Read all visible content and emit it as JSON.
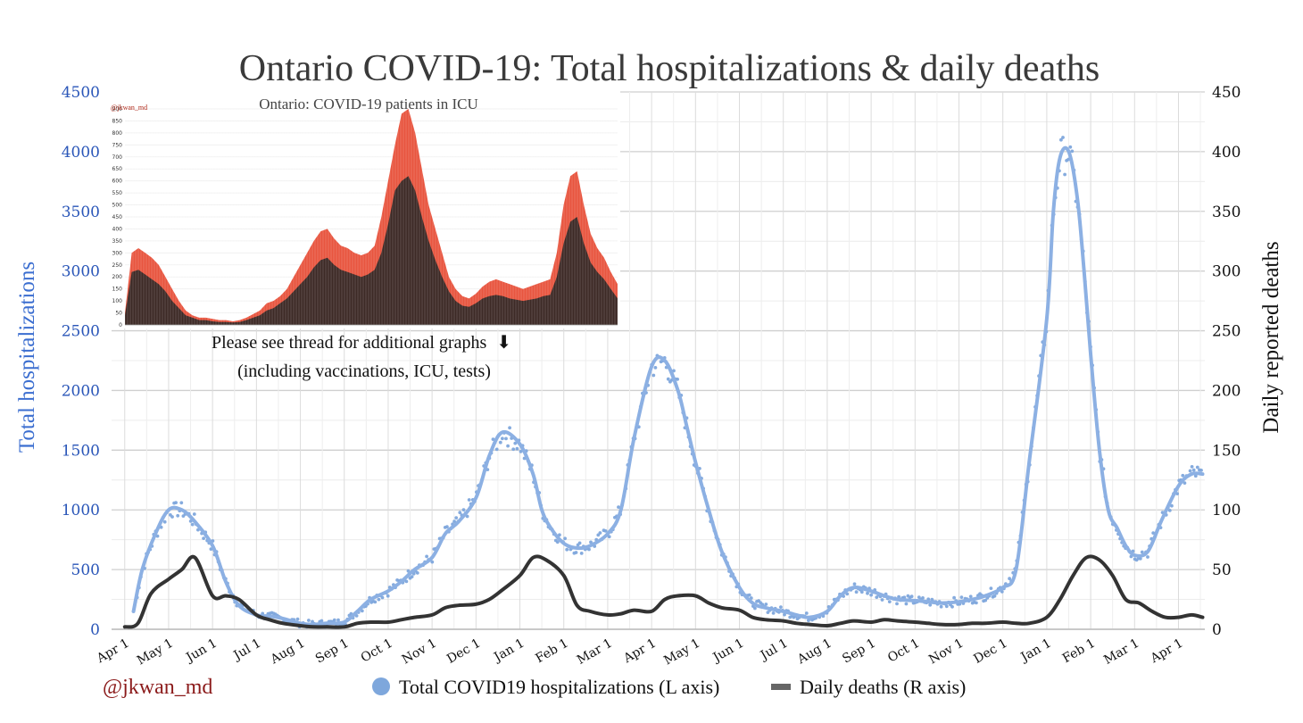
{
  "chart_data": {
    "type": "line",
    "title": "Ontario COVID-19: Total hospitalizations & daily deaths",
    "ylabel_left": "Total hospitalizations",
    "ylabel_right": "Daily reported deaths",
    "ylim_left": [
      0,
      4500
    ],
    "ylim_right": [
      0,
      450
    ],
    "yticks_left": [
      "0",
      "500",
      "1000",
      "1500",
      "2000",
      "2500",
      "3000",
      "3500",
      "4000",
      "4500"
    ],
    "yticks_right": [
      "0",
      "50",
      "100",
      "150",
      "200",
      "250",
      "300",
      "350",
      "400",
      "450"
    ],
    "x_tick_labels": [
      "Apr 1",
      "May 1",
      "Jun 1",
      "Jul 1",
      "Aug 1",
      "Sep 1",
      "Oct 1",
      "Nov 1",
      "Dec 1",
      "Jan 1",
      "Feb 1",
      "Mar 1",
      "Apr 1",
      "May 1",
      "Jun 1",
      "Jul 1",
      "Aug 1",
      "Sep 1",
      "Oct 1",
      "Nov 1",
      "Dec 1",
      "Jan 1",
      "Feb 1",
      "Mar 1",
      "Apr 1"
    ],
    "x_unit": "months since Apr 1 (first year)",
    "xlim": [
      -0.3,
      24.6
    ],
    "grid": true,
    "series": [
      {
        "name": "Total COVID19 hospitalizations (L axis)",
        "axis": "left",
        "color": "#8cb0e3",
        "style": "line with scattered daily points",
        "x": [
          0.2,
          0.4,
          0.7,
          1.0,
          1.3,
          1.6,
          2.0,
          2.3,
          2.6,
          3.0,
          3.3,
          3.6,
          4.0,
          4.3,
          4.6,
          5.0,
          5.3,
          5.6,
          6.0,
          6.3,
          6.6,
          7.0,
          7.3,
          7.6,
          8.0,
          8.3,
          8.6,
          9.0,
          9.3,
          9.5,
          9.7,
          10.0,
          10.3,
          10.6,
          11.0,
          11.3,
          11.6,
          12.0,
          12.3,
          12.6,
          12.8,
          13.0,
          13.3,
          13.6,
          14.0,
          14.3,
          14.6,
          15.0,
          15.3,
          15.6,
          16.0,
          16.3,
          16.6,
          17.0,
          17.3,
          17.6,
          18.0,
          18.3,
          18.6,
          19.0,
          19.3,
          19.6,
          20.0,
          20.3,
          20.6,
          21.0,
          21.15,
          21.3,
          21.5,
          21.7,
          21.85,
          22.0,
          22.2,
          22.4,
          22.6,
          22.8,
          23.0,
          23.3,
          23.6,
          24.0,
          24.3,
          24.55
        ],
        "values": [
          150,
          500,
          800,
          1000,
          1000,
          900,
          700,
          400,
          200,
          120,
          110,
          90,
          50,
          40,
          50,
          60,
          150,
          250,
          320,
          400,
          500,
          600,
          800,
          900,
          1100,
          1450,
          1650,
          1550,
          1300,
          1000,
          850,
          720,
          680,
          700,
          800,
          1000,
          1600,
          2200,
          2250,
          2000,
          1700,
          1400,
          1000,
          650,
          350,
          220,
          180,
          150,
          120,
          100,
          150,
          280,
          350,
          320,
          280,
          250,
          240,
          230,
          220,
          230,
          250,
          280,
          350,
          500,
          1400,
          2600,
          3500,
          3950,
          4000,
          3600,
          3000,
          2300,
          1500,
          1000,
          850,
          700,
          620,
          650,
          900,
          1200,
          1300,
          1300
        ]
      },
      {
        "name": "Daily deaths (R axis)",
        "axis": "right",
        "color": "#333333",
        "style": "thick line",
        "x": [
          0.0,
          0.3,
          0.6,
          1.0,
          1.3,
          1.6,
          2.0,
          2.3,
          2.6,
          3.0,
          3.3,
          3.6,
          4.0,
          4.3,
          4.6,
          5.0,
          5.3,
          5.6,
          6.0,
          6.3,
          6.6,
          7.0,
          7.3,
          7.6,
          8.0,
          8.3,
          8.6,
          9.0,
          9.3,
          9.6,
          10.0,
          10.3,
          10.6,
          11.0,
          11.3,
          11.6,
          12.0,
          12.3,
          12.6,
          13.0,
          13.3,
          13.6,
          14.0,
          14.3,
          14.6,
          15.0,
          15.3,
          15.6,
          16.0,
          16.3,
          16.6,
          17.0,
          17.3,
          17.6,
          18.0,
          18.3,
          18.6,
          19.0,
          19.3,
          19.6,
          20.0,
          20.3,
          20.6,
          21.0,
          21.3,
          21.6,
          21.9,
          22.2,
          22.5,
          22.8,
          23.1,
          23.4,
          23.7,
          24.0,
          24.3,
          24.55
        ],
        "values": [
          2,
          5,
          30,
          42,
          50,
          60,
          28,
          28,
          25,
          12,
          8,
          5,
          3,
          2,
          2,
          2,
          5,
          6,
          6,
          8,
          10,
          12,
          18,
          20,
          21,
          25,
          33,
          45,
          60,
          58,
          45,
          20,
          15,
          12,
          13,
          16,
          15,
          25,
          28,
          28,
          22,
          18,
          16,
          10,
          8,
          7,
          5,
          4,
          3,
          5,
          7,
          6,
          8,
          7,
          6,
          5,
          4,
          4,
          5,
          5,
          6,
          5,
          5,
          10,
          25,
          45,
          60,
          58,
          45,
          25,
          22,
          15,
          10,
          10,
          12,
          10
        ]
      }
    ],
    "inset": {
      "title": "Ontario: COVID-19 patients in ICU",
      "handle": "@jkwan_md",
      "yticks": [
        "0",
        "50",
        "100",
        "150",
        "200",
        "250",
        "300",
        "350",
        "400",
        "450",
        "500",
        "550",
        "600",
        "650",
        "700",
        "750",
        "800",
        "850",
        "900"
      ],
      "ylim": [
        0,
        900
      ],
      "outer_color": "#e8553f",
      "inner_color": "#3d2a26",
      "outer_values": [
        50,
        300,
        320,
        300,
        280,
        250,
        200,
        150,
        100,
        60,
        40,
        30,
        30,
        25,
        20,
        20,
        15,
        20,
        30,
        45,
        60,
        90,
        100,
        120,
        150,
        200,
        250,
        300,
        350,
        390,
        400,
        360,
        330,
        320,
        300,
        290,
        300,
        330,
        450,
        600,
        750,
        880,
        900,
        800,
        650,
        500,
        400,
        300,
        200,
        150,
        120,
        110,
        130,
        160,
        180,
        190,
        180,
        170,
        160,
        150,
        160,
        170,
        180,
        190,
        300,
        500,
        620,
        640,
        500,
        380,
        320,
        280,
        220,
        170
      ],
      "inner_values": [
        40,
        220,
        230,
        210,
        190,
        170,
        140,
        100,
        70,
        40,
        30,
        20,
        20,
        15,
        12,
        12,
        10,
        12,
        20,
        30,
        40,
        60,
        70,
        90,
        110,
        140,
        170,
        200,
        240,
        270,
        280,
        250,
        230,
        220,
        210,
        200,
        210,
        230,
        300,
        420,
        560,
        600,
        620,
        560,
        450,
        350,
        270,
        200,
        140,
        100,
        80,
        75,
        90,
        110,
        120,
        125,
        120,
        110,
        105,
        100,
        105,
        110,
        120,
        125,
        200,
        340,
        430,
        450,
        340,
        260,
        220,
        190,
        150,
        110
      ]
    },
    "annotation_line1": "Please see thread for additional graphs",
    "annotation_arrow": "⬇",
    "annotation_line2": "(including vaccinations, ICU, tests)",
    "handle": "@jkwan_md",
    "legend": [
      {
        "label": "Total COVID19 hospitalizations (L axis)",
        "color": "#7ea7dc",
        "marker": "circle"
      },
      {
        "label": "Daily deaths (R axis)",
        "color": "#666666",
        "marker": "dash"
      }
    ],
    "legend_position": "bottom-center"
  }
}
